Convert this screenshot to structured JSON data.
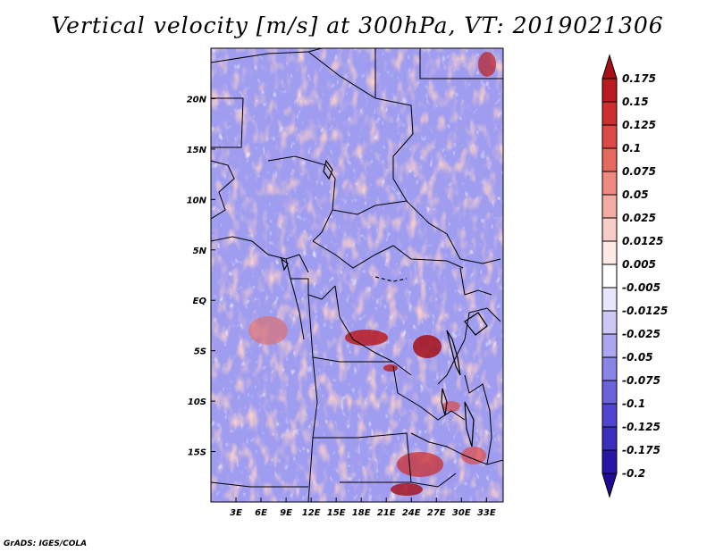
{
  "title": "Vertical velocity [m/s] at 300hPa, VT: 2019021306",
  "credit": "GrADS: IGES/COLA",
  "map": {
    "lon_range": [
      0,
      35
    ],
    "lat_range": [
      -20,
      25
    ],
    "lat_ticks": [
      {
        "value": 20,
        "label": "20N"
      },
      {
        "value": 15,
        "label": "15N"
      },
      {
        "value": 10,
        "label": "10N"
      },
      {
        "value": 5,
        "label": "5N"
      },
      {
        "value": 0,
        "label": "EQ"
      },
      {
        "value": -5,
        "label": "5S"
      },
      {
        "value": -10,
        "label": "10S"
      },
      {
        "value": -15,
        "label": "15S"
      }
    ],
    "lon_ticks": [
      {
        "value": 3,
        "label": "3E"
      },
      {
        "value": 6,
        "label": "6E"
      },
      {
        "value": 9,
        "label": "9E"
      },
      {
        "value": 12,
        "label": "12E"
      },
      {
        "value": 15,
        "label": "15E"
      },
      {
        "value": 18,
        "label": "18E"
      },
      {
        "value": 21,
        "label": "21E"
      },
      {
        "value": 24,
        "label": "24E"
      },
      {
        "value": 27,
        "label": "27E"
      },
      {
        "value": 30,
        "label": "30E"
      },
      {
        "value": 33,
        "label": "33E"
      }
    ]
  },
  "colorbar": {
    "levels": [
      {
        "label": "0.175",
        "color": "#a50f15"
      },
      {
        "label": "0.15",
        "color": "#b81c21"
      },
      {
        "label": "0.125",
        "color": "#cb2f2f"
      },
      {
        "label": "0.1",
        "color": "#db4a46"
      },
      {
        "label": "0.075",
        "color": "#e5695f"
      },
      {
        "label": "0.05",
        "color": "#ee8a80"
      },
      {
        "label": "0.025",
        "color": "#f4aba2"
      },
      {
        "label": "0.0125",
        "color": "#f9cdc7"
      },
      {
        "label": "0.005",
        "color": "#fde9e6"
      },
      {
        "label": "-0.005",
        "color": "#ffffff"
      },
      {
        "label": "-0.0125",
        "color": "#e7e6fb"
      },
      {
        "label": "-0.025",
        "color": "#cbc8f6"
      },
      {
        "label": "-0.05",
        "color": "#aaa6ef"
      },
      {
        "label": "-0.075",
        "color": "#8a84e6"
      },
      {
        "label": "-0.1",
        "color": "#6b63dc"
      },
      {
        "label": "-0.125",
        "color": "#4f45cf"
      },
      {
        "label": "-0.175",
        "color": "#3a2fbd"
      },
      {
        "label": "-0.2",
        "color": "#2715a6"
      }
    ],
    "top_color": "#a50f15",
    "bottom_color": "#1f0a96"
  },
  "colors": {
    "field_base": "#9f9df0",
    "positive": "#f2a59d",
    "strong_positive": "#b81c21",
    "negative": "#6b63dc",
    "boundary": "#000000"
  }
}
